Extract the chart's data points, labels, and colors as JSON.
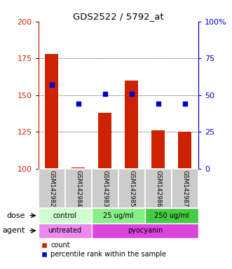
{
  "title": "GDS2522 / 5792_at",
  "samples": [
    "GSM142982",
    "GSM142984",
    "GSM142983",
    "GSM142985",
    "GSM142986",
    "GSM142987"
  ],
  "counts": [
    178,
    101,
    138,
    160,
    126,
    125
  ],
  "percentiles": [
    57,
    44,
    51,
    51,
    44,
    44
  ],
  "ylim_left": [
    100,
    200
  ],
  "ylim_right": [
    0,
    100
  ],
  "yticks_left": [
    100,
    125,
    150,
    175,
    200
  ],
  "yticks_right": [
    0,
    25,
    50,
    75,
    100
  ],
  "ytick_labels_right": [
    "0",
    "25",
    "50",
    "75",
    "100%"
  ],
  "bar_color": "#cc2200",
  "dot_color": "#0000cc",
  "bar_width": 0.5,
  "dose_groups": [
    {
      "label": "control",
      "start": 0,
      "end": 2,
      "color": "#ccffcc"
    },
    {
      "label": "25 ug/ml",
      "start": 2,
      "end": 4,
      "color": "#88ee88"
    },
    {
      "label": "250 ug/ml",
      "start": 4,
      "end": 6,
      "color": "#44cc44"
    }
  ],
  "agent_groups": [
    {
      "label": "untreated",
      "start": 0,
      "end": 2,
      "color": "#ee88ee"
    },
    {
      "label": "pyocyanin",
      "start": 2,
      "end": 6,
      "color": "#dd44dd"
    }
  ],
  "dose_label": "dose",
  "agent_label": "agent",
  "legend_count_label": "count",
  "legend_pct_label": "percentile rank within the sample",
  "left_axis_color": "#cc2200",
  "right_axis_color": "#0000cc",
  "sample_bg": "#cccccc"
}
